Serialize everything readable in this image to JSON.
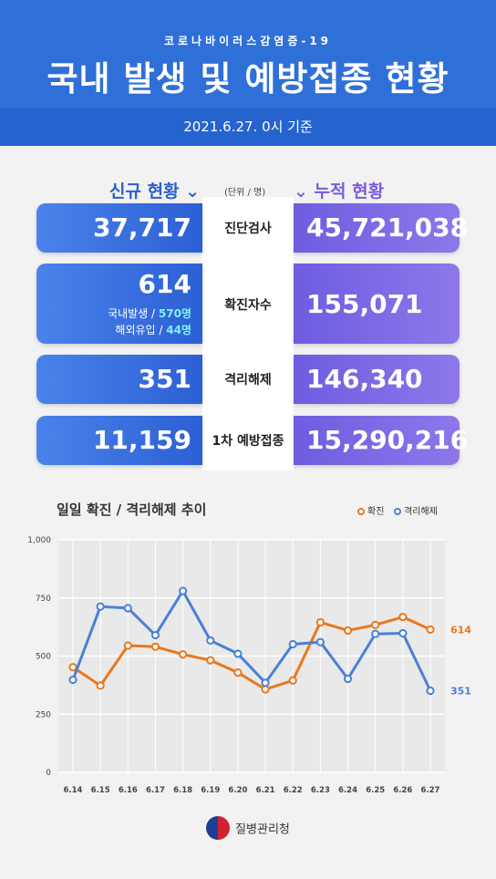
{
  "header": {
    "subtitle": "코로나바이러스감염증-19",
    "title": "국내 발생 및 예방접종 현황",
    "date": "2021.6.27. 0시 기준"
  },
  "columns": {
    "new_title": "신규 현황 ⌄",
    "unit": "(단위 / 명)",
    "cum_title": "⌄ 누적 현황"
  },
  "rows": [
    {
      "label": "진단검사",
      "new": "37,717",
      "cum": "45,721,038"
    },
    {
      "label": "확진자수",
      "new": "614",
      "cum": "155,071",
      "domestic_label": "국내발생 / ",
      "domestic": "570명",
      "overseas_label": "해외유입 / ",
      "overseas": "44명"
    },
    {
      "label": "격리해제",
      "new": "351",
      "cum": "146,340"
    },
    {
      "label": "1차 예방접종",
      "new": "11,159",
      "cum": "15,290,216"
    }
  ],
  "chart_data": {
    "type": "line",
    "title": "일일 확진 / 격리해제 추이",
    "categories": [
      "6.14",
      "6.15",
      "6.16",
      "6.17",
      "6.18",
      "6.19",
      "6.20",
      "6.21",
      "6.22",
      "6.23",
      "6.24",
      "6.25",
      "6.26",
      "6.27"
    ],
    "series": [
      {
        "name": "확진",
        "color": "#e8781e",
        "values": [
          452,
          373,
          545,
          540,
          507,
          482,
          429,
          357,
          395,
          645,
          610,
          634,
          668,
          614
        ]
      },
      {
        "name": "격리해제",
        "color": "#4a80d8",
        "values": [
          398,
          713,
          706,
          590,
          780,
          567,
          510,
          385,
          551,
          560,
          402,
          595,
          598,
          351
        ]
      }
    ],
    "end_labels": [
      "614",
      "351"
    ],
    "yticks": [
      0,
      250,
      500,
      750,
      1000
    ],
    "ytick_labels": [
      "0",
      "250",
      "500",
      "750",
      "1,000"
    ],
    "ylim": [
      0,
      1000
    ],
    "grid": true,
    "legend": "top-right"
  },
  "footer": {
    "org": "질병관리청"
  }
}
